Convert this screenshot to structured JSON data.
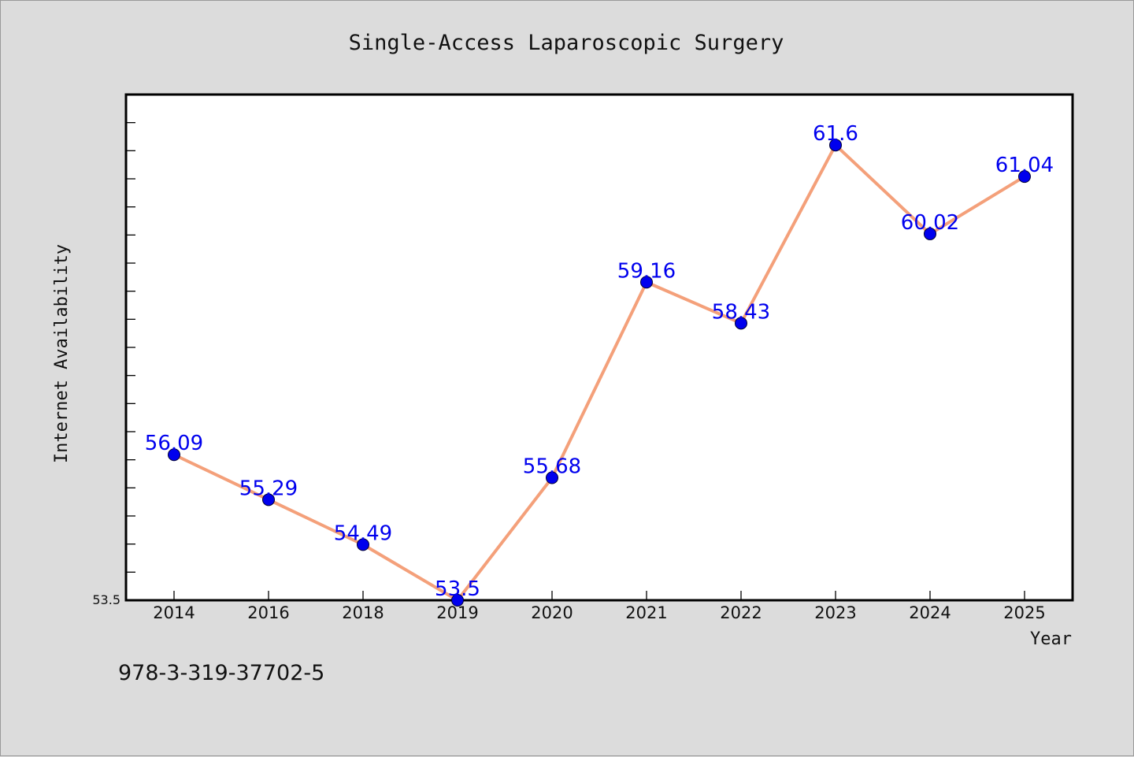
{
  "chart_data": {
    "type": "line",
    "title": "Single-Access Laparoscopic Surgery",
    "xlabel": "Year",
    "ylabel": "Internet Availability",
    "categories": [
      "2014",
      "2016",
      "2018",
      "2019",
      "2020",
      "2021",
      "2022",
      "2023",
      "2024",
      "2025"
    ],
    "values": [
      56.09,
      55.29,
      54.49,
      53.5,
      55.68,
      59.16,
      58.43,
      61.6,
      60.02,
      61.04
    ],
    "data_labels": [
      "56.09",
      "55.29",
      "54.49",
      "53.5",
      "55.68",
      "59.16",
      "58.43",
      "61.6",
      "60.02",
      "61.04"
    ],
    "ylim": [
      53.5,
      62.5
    ],
    "ytick_labels": [
      "53.5"
    ],
    "grid": false,
    "legend": "none",
    "colors": {
      "line": "#f4a07a",
      "marker": "#0000ee",
      "data_label": "#0000ee",
      "plot_background": "#ffffff",
      "figure_background": "#dcdcdc"
    }
  },
  "footer": {
    "isbn": "978-3-319-37702-5"
  }
}
